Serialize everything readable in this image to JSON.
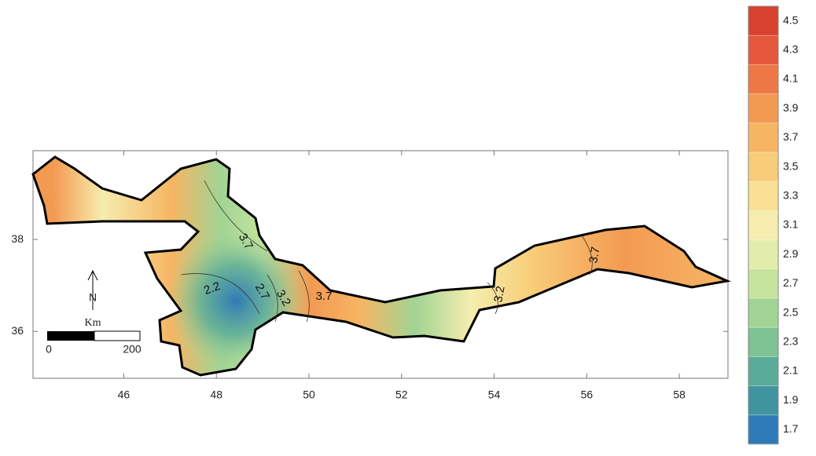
{
  "map": {
    "xlim": [
      44.04,
      59.05
    ],
    "ylim": [
      34.98,
      39.93
    ],
    "xticks": [
      46,
      48,
      50,
      52,
      54,
      56,
      58
    ],
    "yticks": [
      36,
      38
    ],
    "contour_labels": [
      3.7,
      2.2,
      2.7,
      3.2,
      3.7,
      3.2,
      3.7
    ],
    "north_label": "N",
    "scale_bar": {
      "unit": "Km",
      "start": 0,
      "end": 200
    },
    "legend": {
      "values": [
        4.5,
        4.3,
        4.1,
        3.9,
        3.7,
        3.5,
        3.3,
        3.1,
        2.9,
        2.7,
        2.5,
        2.3,
        2.1,
        1.9,
        1.7
      ],
      "colors": [
        "#d9412f",
        "#e4573a",
        "#ee7845",
        "#f39a52",
        "#f6b563",
        "#f8cc78",
        "#f9df93",
        "#f6edae",
        "#e3edab",
        "#c5e39d",
        "#a1d494",
        "#7ec293",
        "#5aac98",
        "#3f949f",
        "#2f7ab8"
      ]
    }
  }
}
